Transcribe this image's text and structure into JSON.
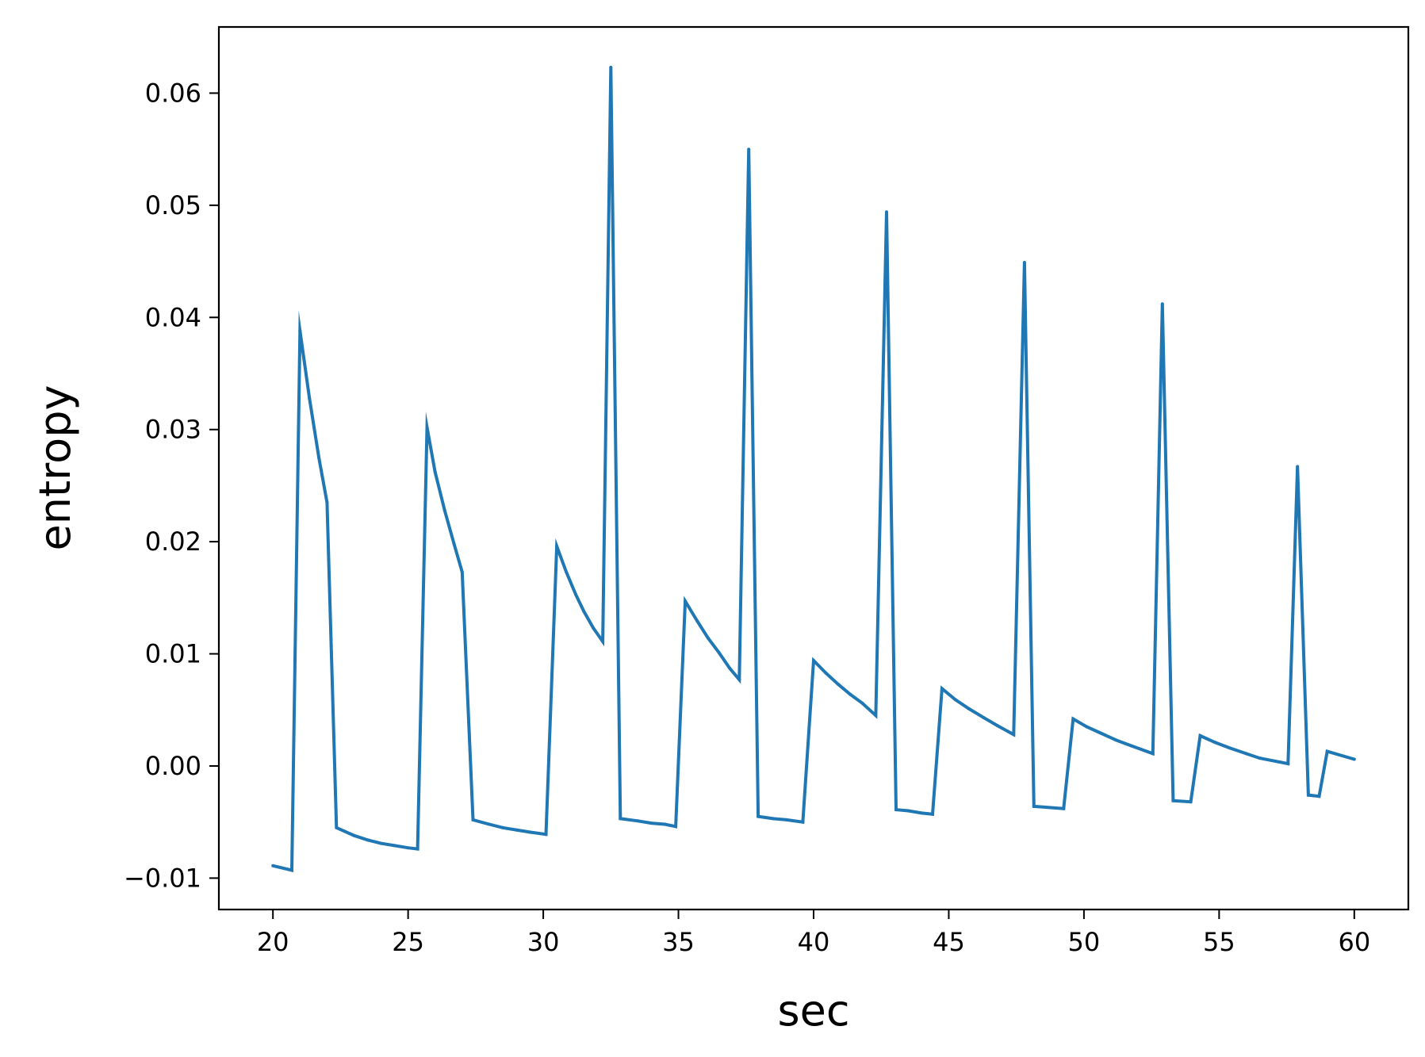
{
  "chart_data": {
    "type": "line",
    "xlabel": "sec",
    "ylabel": "entropy",
    "xlim": [
      18,
      62
    ],
    "ylim": [
      -0.0128,
      0.0659
    ],
    "xticks": [
      20,
      25,
      30,
      35,
      40,
      45,
      50,
      55,
      60
    ],
    "xtick_labels": [
      "20",
      "25",
      "30",
      "35",
      "40",
      "45",
      "50",
      "55",
      "60"
    ],
    "yticks": [
      -0.01,
      0.0,
      0.01,
      0.02,
      0.03,
      0.04,
      0.05,
      0.06
    ],
    "ytick_labels": [
      "−0.01",
      "0.00",
      "0.01",
      "0.02",
      "0.03",
      "0.04",
      "0.05",
      "0.06"
    ],
    "grid": false,
    "legend": "none",
    "line_color": "#1f77b4",
    "series": [
      {
        "x": [
          20.0,
          20.7,
          21.0,
          21.35,
          21.7,
          22.0,
          22.35,
          23.0,
          23.5,
          24.0,
          24.5,
          25.0,
          25.35,
          25.7,
          26.0,
          26.35,
          26.7,
          27.0,
          27.4,
          28.0,
          28.5,
          29.0,
          29.5,
          30.1,
          30.5,
          30.85,
          31.2,
          31.5,
          31.85,
          32.2,
          32.5,
          32.85,
          33.5,
          34.0,
          34.5,
          34.9,
          35.25,
          35.7,
          36.1,
          36.5,
          36.9,
          37.25,
          37.6,
          37.95,
          38.5,
          39.0,
          39.6,
          40.0,
          40.45,
          40.9,
          41.35,
          41.8,
          42.3,
          42.7,
          43.05,
          43.5,
          44.0,
          44.4,
          44.75,
          45.25,
          45.75,
          46.3,
          46.8,
          47.4,
          47.8,
          48.15,
          49.25,
          49.6,
          50.1,
          50.65,
          51.2,
          51.75,
          52.55,
          52.9,
          53.3,
          53.95,
          54.3,
          54.85,
          55.4,
          56.0,
          56.5,
          57.55,
          57.9,
          58.3,
          58.7,
          59.0,
          60.0
        ],
        "y": [
          -0.0089,
          -0.0093,
          0.0388,
          0.0328,
          0.0275,
          0.0235,
          -0.0055,
          -0.0062,
          -0.0066,
          -0.0069,
          -0.0071,
          -0.0073,
          -0.0074,
          0.0302,
          0.0262,
          0.0228,
          0.0198,
          0.0173,
          -0.0048,
          -0.0052,
          -0.0055,
          -0.0057,
          -0.0059,
          -0.0061,
          0.0196,
          0.0173,
          0.0153,
          0.0138,
          0.0123,
          0.0111,
          0.0623,
          -0.0047,
          -0.0049,
          -0.0051,
          -0.0052,
          -0.0054,
          0.0147,
          0.0129,
          0.0114,
          0.0101,
          0.0087,
          0.0077,
          0.055,
          -0.0045,
          -0.0047,
          -0.0048,
          -0.005,
          0.0094,
          0.0083,
          0.0073,
          0.0064,
          0.0056,
          0.0045,
          0.0494,
          -0.0039,
          -0.004,
          -0.0042,
          -0.0043,
          0.0069,
          0.0059,
          0.0051,
          0.0043,
          0.0036,
          0.0028,
          0.0449,
          -0.0036,
          -0.0038,
          0.0042,
          0.0035,
          0.0029,
          0.0023,
          0.0018,
          0.0011,
          0.0412,
          -0.0031,
          -0.0032,
          0.0027,
          0.0021,
          0.0016,
          0.0011,
          0.0007,
          0.0002,
          0.0267,
          -0.0026,
          -0.0027,
          0.0013,
          0.0006
        ]
      }
    ]
  }
}
